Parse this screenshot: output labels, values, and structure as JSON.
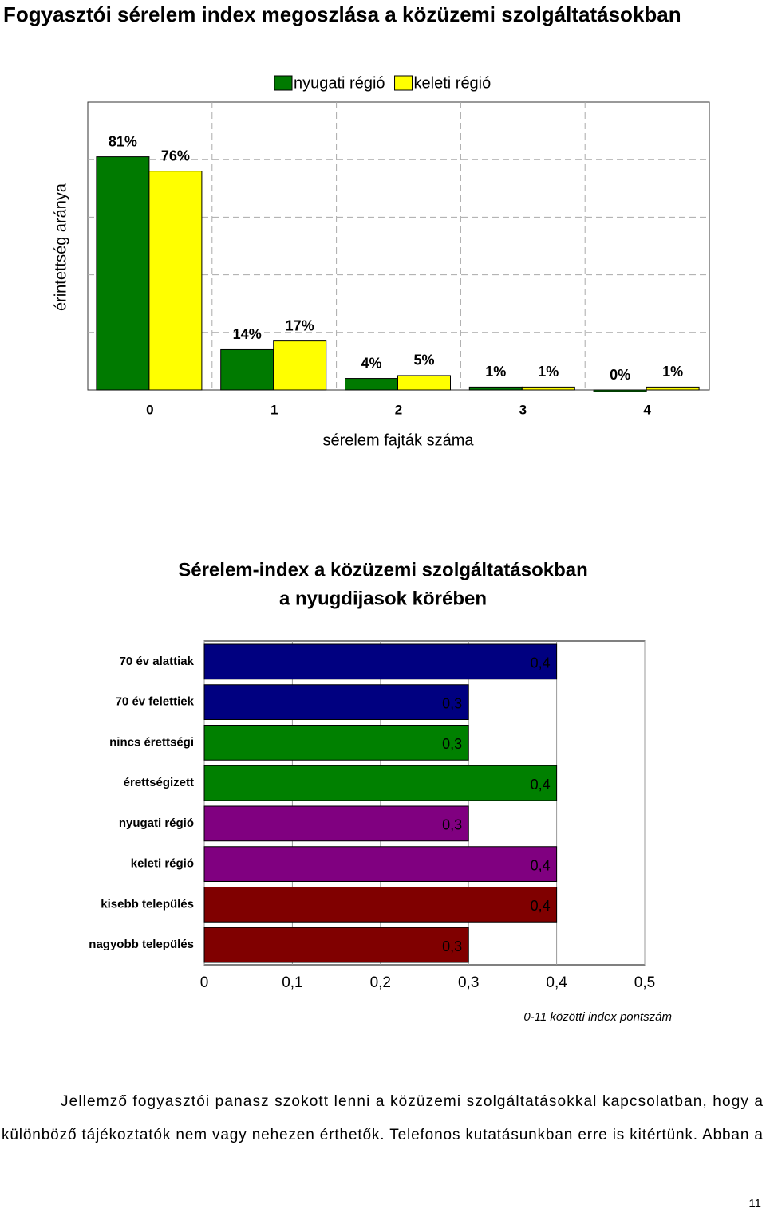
{
  "title": "Fogyasztói sérelem index megoszlása a közüzemi szolgáltatásokban",
  "chart_data": [
    {
      "type": "grouped_bar",
      "y_label": "érintettség aránya",
      "x_label": "sérelem fajták száma",
      "categories": [
        "0",
        "1",
        "2",
        "3",
        "4"
      ],
      "series": [
        {
          "name": "nyugati régió",
          "color": "#007a00",
          "values": [
            81,
            14,
            4,
            1,
            0
          ],
          "value_labels": [
            "81%",
            "14%",
            "4%",
            "1%",
            "0%"
          ]
        },
        {
          "name": "keleti régió",
          "color": "#ffff00",
          "values": [
            76,
            17,
            5,
            1,
            1
          ],
          "value_labels": [
            "76%",
            "17%",
            "5%",
            "1%",
            "1%"
          ]
        }
      ],
      "ylim": [
        0,
        100
      ],
      "ygrid": [
        20,
        40,
        60,
        80
      ],
      "legend": "top"
    },
    {
      "type": "horizontal_bar",
      "title": [
        "Sérelem-index a közüzemi szolgáltatásokban",
        "a nyugdijasok körében"
      ],
      "categories": [
        "70 év alattiak",
        "70 év felettiek",
        "nincs érettségi",
        "érettségizett",
        "nyugati régió",
        "keleti régió",
        "kisebb település",
        "nagyobb település"
      ],
      "values": [
        0.4,
        0.3,
        0.3,
        0.4,
        0.3,
        0.4,
        0.4,
        0.3
      ],
      "value_labels": [
        "0,4",
        "0,3",
        "0,3",
        "0,4",
        "0,3",
        "0,4",
        "0,4",
        "0,3"
      ],
      "colors": [
        "#000080",
        "#000080",
        "#008000",
        "#008000",
        "#800080",
        "#800080",
        "#800000",
        "#800000"
      ],
      "xlim": [
        0,
        0.5
      ],
      "xticks": [
        0,
        {
          "value": 0.1,
          "label": "0,1"
        },
        {
          "value": 0.2,
          "label": "0,2"
        },
        {
          "value": 0.3,
          "label": "0,3"
        },
        {
          "value": 0.4,
          "label": "0,4"
        },
        {
          "value": 0.5,
          "label": "0,5"
        }
      ],
      "x_label": "0-11 közötti index pontszám",
      "grid": true
    }
  ],
  "body_lines": [
    "Jellemző fogyasztói panasz szokott lenni a közüzemi szolgáltatásokkal kapcsolatban, hogy a",
    "különböző tájékoztatók nem vagy nehezen érthetők. Telefonos kutatásunkban erre is kitértünk. Abban a"
  ],
  "page_number": "11"
}
